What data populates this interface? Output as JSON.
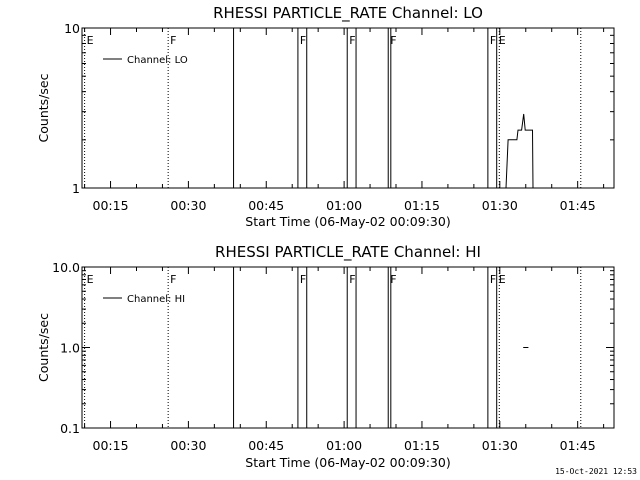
{
  "footer": {
    "timestamp": "15-Oct-2021 12:53"
  },
  "chart_data": [
    {
      "type": "line",
      "title": "RHESSI PARTICLE_RATE Channel: LO",
      "xlabel": "Start Time (06-May-02 00:09:30)",
      "ylabel": "Counts/sec",
      "yscale": "log",
      "ylim": [
        1,
        10
      ],
      "y_ticks": [
        1,
        10
      ],
      "y_tick_labels": [
        "1",
        "10"
      ],
      "xlim_minutes": [
        9.5,
        112
      ],
      "x_ticks_minutes": [
        15,
        30,
        45,
        60,
        75,
        90,
        105
      ],
      "x_tick_labels": [
        "00:15",
        "00:30",
        "00:45",
        "01:00",
        "01:15",
        "01:30",
        "01:45"
      ],
      "legend": {
        "position": "top-left",
        "entries": [
          "Channel: LO"
        ]
      },
      "series": [
        {
          "name": "Channel: LO",
          "points_minutes": [
            [
              91.2,
              1
            ],
            [
              91.6,
              2
            ],
            [
              93.3,
              2
            ],
            [
              93.5,
              2.3
            ],
            [
              94.2,
              2.3
            ],
            [
              94.6,
              2.9
            ],
            [
              94.9,
              2.3
            ],
            [
              96.3,
              2.3
            ],
            [
              96.4,
              1
            ]
          ]
        }
      ],
      "event_lines": [
        {
          "minute": 10.0,
          "label": "E",
          "style": "dotted"
        },
        {
          "minute": 26.1,
          "label": "F",
          "style": "dotted"
        },
        {
          "minute": 38.7,
          "label": "",
          "style": "solid"
        },
        {
          "minute": 51.1,
          "label": "F",
          "style": "solid"
        },
        {
          "minute": 52.8,
          "label": "",
          "style": "solid"
        },
        {
          "minute": 60.6,
          "label": "F",
          "style": "solid"
        },
        {
          "minute": 62.3,
          "label": "",
          "style": "solid"
        },
        {
          "minute": 68.5,
          "label": "F",
          "style": "solid"
        },
        {
          "minute": 69.0,
          "label": "",
          "style": "solid"
        },
        {
          "minute": 87.7,
          "label": "F",
          "style": "solid"
        },
        {
          "minute": 89.4,
          "label": "E",
          "style": "solid"
        },
        {
          "minute": 89.9,
          "label": "",
          "style": "dotted"
        },
        {
          "minute": 105.6,
          "label": "",
          "style": "dotted"
        }
      ]
    },
    {
      "type": "line",
      "title": "RHESSI PARTICLE_RATE Channel: HI",
      "xlabel": "Start Time (06-May-02 00:09:30)",
      "ylabel": "Counts/sec",
      "yscale": "log",
      "ylim": [
        0.1,
        10
      ],
      "y_ticks": [
        0.1,
        1,
        10
      ],
      "y_tick_labels": [
        "0.1",
        "1.0",
        "10.0"
      ],
      "xlim_minutes": [
        9.5,
        112
      ],
      "x_ticks_minutes": [
        15,
        30,
        45,
        60,
        75,
        90,
        105
      ],
      "x_tick_labels": [
        "00:15",
        "00:30",
        "00:45",
        "01:00",
        "01:15",
        "01:30",
        "01:45"
      ],
      "legend": {
        "position": "top-left",
        "entries": [
          "Channel: HI"
        ]
      },
      "series": [
        {
          "name": "Channel: HI",
          "points_minutes": [
            [
              94.5,
              1
            ],
            [
              95.5,
              1
            ]
          ]
        }
      ],
      "event_lines": [
        {
          "minute": 10.0,
          "label": "E",
          "style": "dotted"
        },
        {
          "minute": 26.1,
          "label": "F",
          "style": "dotted"
        },
        {
          "minute": 38.7,
          "label": "",
          "style": "solid"
        },
        {
          "minute": 51.1,
          "label": "F",
          "style": "solid"
        },
        {
          "minute": 52.8,
          "label": "",
          "style": "solid"
        },
        {
          "minute": 60.6,
          "label": "F",
          "style": "solid"
        },
        {
          "minute": 62.3,
          "label": "",
          "style": "solid"
        },
        {
          "minute": 68.5,
          "label": "F",
          "style": "solid"
        },
        {
          "minute": 69.0,
          "label": "",
          "style": "solid"
        },
        {
          "minute": 87.7,
          "label": "F",
          "style": "solid"
        },
        {
          "minute": 89.4,
          "label": "E",
          "style": "solid"
        },
        {
          "minute": 89.9,
          "label": "",
          "style": "dotted"
        },
        {
          "minute": 105.6,
          "label": "",
          "style": "dotted"
        }
      ]
    }
  ]
}
